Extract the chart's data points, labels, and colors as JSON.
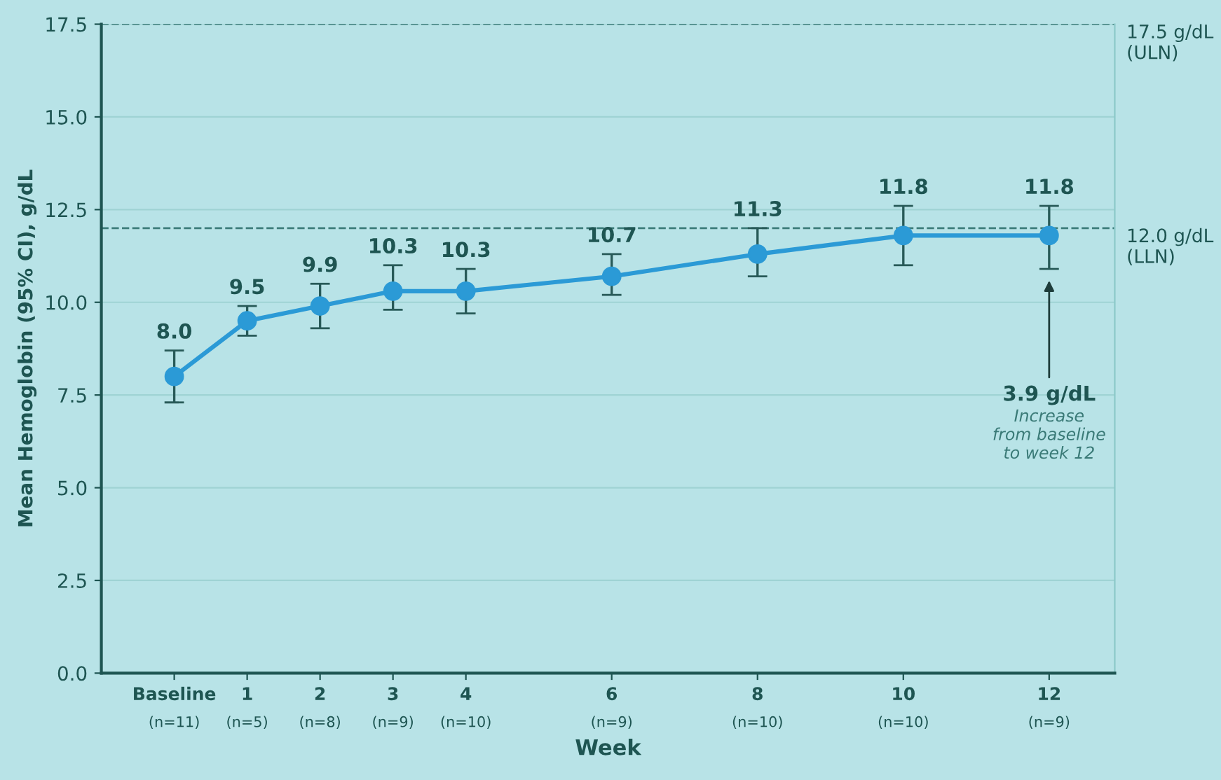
{
  "chart_data": {
    "type": "line",
    "xlabel": "Week",
    "ylabel": "Mean Hemoglobin (95% CI), g/dL",
    "x": [
      0,
      1,
      2,
      3,
      4,
      6,
      8,
      10,
      12
    ],
    "series": [
      {
        "color": "#2b9ad6",
        "values": [
          8.0,
          9.5,
          9.9,
          10.3,
          10.3,
          10.7,
          11.3,
          11.8,
          11.8
        ],
        "errors": [
          [
            7.3,
            8.7
          ],
          [
            9.1,
            9.9
          ],
          [
            9.3,
            10.5
          ],
          [
            9.8,
            11.0
          ],
          [
            9.7,
            10.9
          ],
          [
            10.2,
            11.3
          ],
          [
            10.7,
            12.0
          ],
          [
            11.0,
            12.6
          ],
          [
            10.9,
            12.6
          ]
        ],
        "value_labels": [
          "8.0",
          "9.5",
          "9.9",
          "10.3",
          "10.3",
          "10.7",
          "11.3",
          "11.8",
          "11.8"
        ]
      }
    ],
    "marker": "circle",
    "line_style": "solid",
    "grid": "y",
    "xlim": [
      -1,
      12.9
    ],
    "xticks": [
      {
        "value": 0,
        "label": "Baseline"
      },
      1,
      2,
      3,
      4,
      6,
      8,
      10,
      12
    ],
    "ylim": [
      0,
      17.5
    ],
    "yticks": [
      {
        "value": 0,
        "label": "0.0"
      },
      2.5,
      {
        "value": 5,
        "label": "5.0"
      },
      7.5,
      {
        "value": 10,
        "label": "10.0"
      },
      12.5,
      {
        "value": 15,
        "label": "15.0"
      },
      17.5
    ],
    "ref_lines": [
      {
        "axis": "y",
        "value": 17.5,
        "label": "17.5 g/dL\n(ULN)",
        "line_style": "dashed",
        "color": "#3d7d7a"
      },
      {
        "axis": "y",
        "value": 12.0,
        "label": "12.0 g/dL\n(LLN)",
        "line_style": "dashed",
        "color": "#3d7d7a"
      }
    ],
    "annotations": [
      "(n=11)",
      "(n=5)",
      "(n=8)",
      "(n=9)",
      "(n=10)",
      "(n=9)",
      "(n=10)",
      "(n=10)",
      "(n=9)",
      "3.9 g/dL",
      "Increase\nfrom baseline\nto week 12"
    ]
  }
}
